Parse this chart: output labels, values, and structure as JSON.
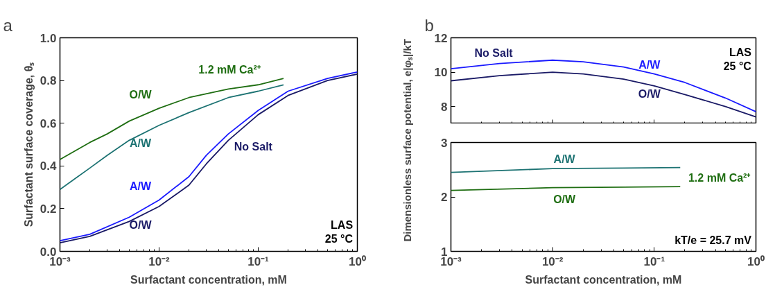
{
  "chart_data": [
    {
      "type": "line",
      "title": "a",
      "xlabel": "Surfactant concentration, mM",
      "ylabel": "Surfactant surface coverage, θₛ",
      "log": "x",
      "grid": false,
      "legend": false,
      "xlim": [
        0.001,
        1
      ],
      "xticks": [
        {
          "value": 0.001,
          "label": "10⁻³"
        },
        {
          "value": 0.01,
          "label": "10⁻²"
        },
        {
          "value": 0.1,
          "label": "10⁻¹"
        },
        {
          "value": 1,
          "label": "10⁰"
        }
      ],
      "ylim": [
        0,
        1
      ],
      "yticks": [
        {
          "value": 0,
          "label": "0.0"
        },
        0.2,
        0.4,
        0.6,
        0.8,
        {
          "value": 1,
          "label": "1.0"
        }
      ],
      "series": [
        {
          "name": "O/W",
          "color": "#1f6e12",
          "x": [
            0.001,
            0.002,
            0.003,
            0.005,
            0.01,
            0.02,
            0.05,
            0.1,
            0.18
          ],
          "values": [
            0.43,
            0.51,
            0.55,
            0.61,
            0.67,
            0.72,
            0.76,
            0.78,
            0.81
          ]
        },
        {
          "name": "A/W",
          "color": "#1d7373",
          "x": [
            0.001,
            0.002,
            0.003,
            0.005,
            0.01,
            0.02,
            0.05,
            0.1,
            0.18
          ],
          "values": [
            0.29,
            0.39,
            0.45,
            0.52,
            0.59,
            0.65,
            0.72,
            0.75,
            0.78
          ]
        },
        {
          "name": "A/W",
          "color": "#1a1aff",
          "x": [
            0.001,
            0.002,
            0.005,
            0.01,
            0.02,
            0.03,
            0.05,
            0.1,
            0.2,
            0.5,
            1
          ],
          "values": [
            0.05,
            0.08,
            0.16,
            0.24,
            0.35,
            0.45,
            0.55,
            0.66,
            0.75,
            0.81,
            0.84
          ]
        },
        {
          "name": "O/W",
          "color": "#1a1a66",
          "x": [
            0.001,
            0.002,
            0.005,
            0.01,
            0.02,
            0.03,
            0.05,
            0.1,
            0.2,
            0.5,
            1
          ],
          "values": [
            0.04,
            0.07,
            0.14,
            0.21,
            0.31,
            0.41,
            0.52,
            0.64,
            0.73,
            0.8,
            0.83
          ]
        }
      ],
      "annotations": [
        "1.2 mM Ca²⁺",
        "No Salt",
        "LAS\n25 °C"
      ]
    },
    {
      "type": "line",
      "title": "b",
      "ylabel": "Dimensionless surface potential, e|φₛ|/kT",
      "log": "x",
      "grid": false,
      "legend": false,
      "tick_labels": "y",
      "xlim": [
        0.001,
        1
      ],
      "xticks": [
        {
          "value": 0.001,
          "label": null
        },
        {
          "value": 0.01,
          "label": null
        },
        {
          "value": 0.1,
          "label": null
        },
        {
          "value": 1,
          "label": null
        }
      ],
      "ylim": [
        7,
        12
      ],
      "yticks": [
        8,
        10,
        12
      ],
      "series": [
        {
          "name": "A/W",
          "color": "#1a1aff",
          "x": [
            0.001,
            0.003,
            0.01,
            0.02,
            0.05,
            0.1,
            0.2,
            0.5,
            1
          ],
          "values": [
            10.2,
            10.5,
            10.7,
            10.6,
            10.3,
            9.9,
            9.4,
            8.5,
            7.7
          ]
        },
        {
          "name": "O/W",
          "color": "#1a1a66",
          "x": [
            0.001,
            0.003,
            0.01,
            0.02,
            0.05,
            0.1,
            0.2,
            0.5,
            1
          ],
          "values": [
            9.5,
            9.8,
            10.0,
            9.9,
            9.6,
            9.2,
            8.7,
            8.0,
            7.4
          ]
        }
      ],
      "annotations": [
        "No Salt",
        "LAS\n25 °C"
      ]
    },
    {
      "type": "line",
      "xlabel": "Surfactant concentration, mM",
      "log": "x",
      "grid": false,
      "legend": false,
      "xlim": [
        0.001,
        1
      ],
      "xticks": [
        {
          "value": 0.001,
          "label": "10⁻³"
        },
        {
          "value": 0.01,
          "label": "10⁻²"
        },
        {
          "value": 0.1,
          "label": "10⁻¹"
        },
        {
          "value": 1,
          "label": "10⁰"
        }
      ],
      "ylim": [
        1,
        3
      ],
      "yticks": [
        1,
        2,
        3
      ],
      "series": [
        {
          "name": "A/W",
          "color": "#1d7373",
          "x": [
            0.001,
            0.01,
            0.05,
            0.18
          ],
          "values": [
            2.45,
            2.52,
            2.53,
            2.54
          ]
        },
        {
          "name": "O/W",
          "color": "#1f6e12",
          "x": [
            0.001,
            0.01,
            0.05,
            0.18
          ],
          "values": [
            2.12,
            2.17,
            2.18,
            2.19
          ]
        }
      ],
      "annotations": [
        "1.2 mM Ca²⁺",
        "kT/e = 25.7 mV"
      ]
    }
  ]
}
